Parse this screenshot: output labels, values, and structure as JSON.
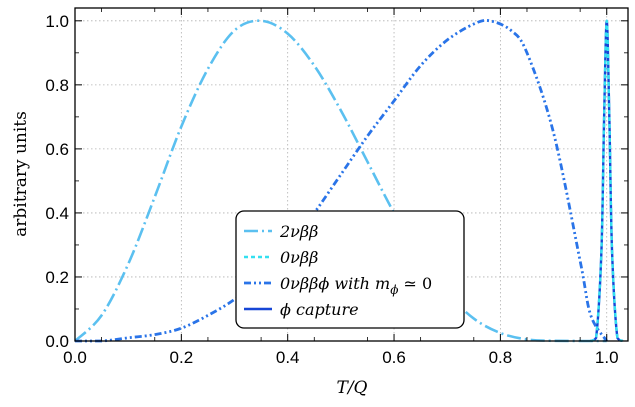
{
  "chart_data": {
    "type": "line",
    "xlabel": "T/Q",
    "ylabel": "arbitrary  units",
    "xlim": [
      0.0,
      1.04
    ],
    "ylim": [
      0.0,
      1.04
    ],
    "x_ticks": [
      "0.0",
      "0.2",
      "0.4",
      "0.6",
      "0.8",
      "1.0"
    ],
    "y_ticks": [
      "0.0",
      "0.2",
      "0.4",
      "0.6",
      "0.8",
      "1.0"
    ],
    "grid": true,
    "legend_position": "bottom-center",
    "series": [
      {
        "name": "2νββ",
        "color": "#5bc0f0",
        "style": "long-dash-dot",
        "x": [
          0.0,
          0.05,
          0.1,
          0.15,
          0.2,
          0.25,
          0.3,
          0.35,
          0.4,
          0.45,
          0.5,
          0.55,
          0.6,
          0.65,
          0.7,
          0.75,
          0.8,
          0.85,
          0.9,
          0.95,
          1.0
        ],
        "y": [
          0.0,
          0.08,
          0.24,
          0.45,
          0.67,
          0.85,
          0.97,
          1.0,
          0.96,
          0.86,
          0.72,
          0.56,
          0.4,
          0.26,
          0.15,
          0.07,
          0.025,
          0.005,
          0.0005,
          0.0,
          0.0
        ]
      },
      {
        "name": "0νββ",
        "color": "#33e0f0",
        "style": "dashed",
        "x": [
          0.97,
          0.98,
          0.99,
          0.995,
          1.0,
          1.005,
          1.01,
          1.02,
          1.03
        ],
        "y": [
          0.0,
          0.01,
          0.28,
          0.69,
          1.0,
          0.69,
          0.28,
          0.01,
          0.0
        ]
      },
      {
        "name": "0νββϕ with  m_ϕ ≃ 0",
        "color": "#2a74e8",
        "style": "dash-dot-dot",
        "x": [
          0.0,
          0.05,
          0.1,
          0.15,
          0.2,
          0.25,
          0.3,
          0.35,
          0.4,
          0.45,
          0.5,
          0.55,
          0.6,
          0.65,
          0.7,
          0.75,
          0.78,
          0.82,
          0.85,
          0.9,
          0.95,
          0.97,
          1.0
        ],
        "y": [
          0.0,
          0.0,
          0.01,
          0.02,
          0.04,
          0.08,
          0.13,
          0.2,
          0.29,
          0.4,
          0.52,
          0.64,
          0.75,
          0.86,
          0.94,
          0.99,
          1.0,
          0.97,
          0.9,
          0.65,
          0.25,
          0.08,
          0.0
        ]
      },
      {
        "name": "ϕ capture",
        "color": "#1746d6",
        "style": "solid",
        "x": [
          0.97,
          0.98,
          0.99,
          0.995,
          1.0,
          1.005,
          1.01,
          1.02,
          1.03
        ],
        "y": [
          0.0,
          0.01,
          0.28,
          0.69,
          1.0,
          0.69,
          0.28,
          0.01,
          0.0
        ]
      }
    ],
    "legend": {
      "entries": [
        {
          "label_main": "2νββ",
          "label_sub": "",
          "label_tail": ""
        },
        {
          "label_main": "0νββ",
          "label_sub": "",
          "label_tail": ""
        },
        {
          "label_main": "0νββϕ with  m",
          "label_sub": "ϕ",
          "label_tail": " ≃ 0"
        },
        {
          "label_main": "ϕ capture",
          "label_sub": "",
          "label_tail": ""
        }
      ]
    }
  }
}
